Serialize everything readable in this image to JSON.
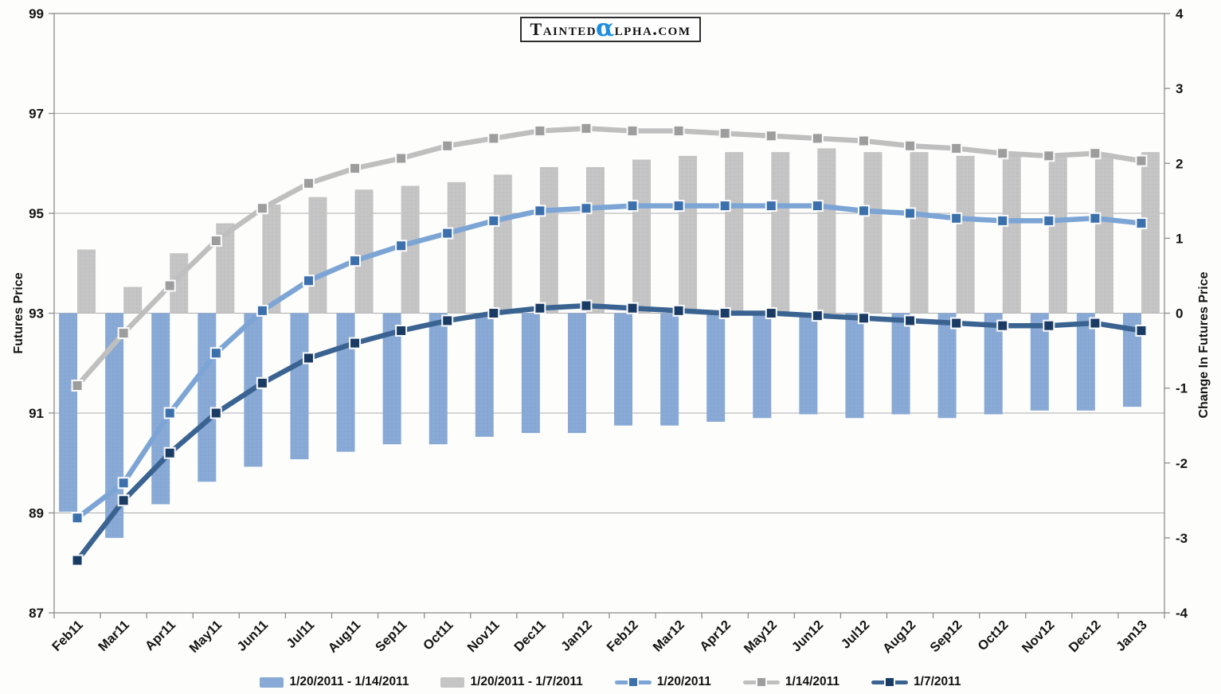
{
  "logo": {
    "prefix": "Tainted",
    "alpha": "α",
    "suffix": "lpha.com",
    "alpha_color": "#1D8FE2"
  },
  "chart_data": {
    "type": "combo-bar-line",
    "categories": [
      "Feb11",
      "Mar11",
      "Apr11",
      "May11",
      "Jun11",
      "Jul11",
      "Aug11",
      "Sep11",
      "Oct11",
      "Nov11",
      "Dec11",
      "Jan12",
      "Feb12",
      "Mar12",
      "Apr12",
      "May12",
      "Jun12",
      "Jul12",
      "Aug12",
      "Sep12",
      "Oct12",
      "Nov12",
      "Dec12",
      "Jan13"
    ],
    "series": [
      {
        "name": "1/20/2011 - 1/14/2011",
        "type": "bar",
        "axis": "right",
        "color": "#89AAD6",
        "values": [
          -2.65,
          -3.0,
          -2.55,
          -2.25,
          -2.05,
          -1.95,
          -1.85,
          -1.75,
          -1.75,
          -1.65,
          -1.6,
          -1.6,
          -1.5,
          -1.5,
          -1.45,
          -1.4,
          -1.35,
          -1.4,
          -1.35,
          -1.4,
          -1.35,
          -1.3,
          -1.3,
          -1.25
        ]
      },
      {
        "name": "1/20/2011 - 1/7/2011",
        "type": "bar",
        "axis": "right",
        "color": "#C5C5C5",
        "values": [
          0.85,
          0.35,
          0.8,
          1.2,
          1.45,
          1.55,
          1.65,
          1.7,
          1.75,
          1.85,
          1.95,
          1.95,
          2.05,
          2.1,
          2.15,
          2.15,
          2.2,
          2.15,
          2.15,
          2.1,
          2.1,
          2.1,
          2.1,
          2.15
        ]
      },
      {
        "name": "1/20/2011",
        "type": "line",
        "axis": "left",
        "color": "#7CA5D5",
        "marker_color": "#3B70AD",
        "values": [
          88.9,
          89.6,
          91.0,
          92.2,
          93.05,
          93.65,
          94.05,
          94.35,
          94.6,
          94.85,
          95.05,
          95.1,
          95.15,
          95.15,
          95.15,
          95.15,
          95.15,
          95.05,
          95.0,
          94.9,
          94.85,
          94.85,
          94.9,
          94.8
        ]
      },
      {
        "name": "1/14/2011",
        "type": "line",
        "axis": "left",
        "color": "#BFBFBF",
        "marker_color": "#9D9D9D",
        "values": [
          91.55,
          92.6,
          93.55,
          94.45,
          95.1,
          95.6,
          95.9,
          96.1,
          96.35,
          96.5,
          96.65,
          96.7,
          96.65,
          96.65,
          96.6,
          96.55,
          96.5,
          96.45,
          96.35,
          96.3,
          96.2,
          96.15,
          96.2,
          96.05
        ]
      },
      {
        "name": "1/7/2011",
        "type": "line",
        "axis": "left",
        "color": "#3A6392",
        "marker_color": "#1A3C64",
        "values": [
          88.05,
          89.25,
          90.2,
          91.0,
          91.6,
          92.1,
          92.4,
          92.65,
          92.85,
          93.0,
          93.1,
          93.15,
          93.1,
          93.05,
          93.0,
          93.0,
          92.95,
          92.9,
          92.85,
          92.8,
          92.75,
          92.75,
          92.8,
          92.65
        ]
      }
    ],
    "left_axis": {
      "title": "Futures Price",
      "min": 87,
      "max": 99,
      "tick_step": 2
    },
    "right_axis": {
      "title": "Change In Futures Price",
      "min": -4,
      "max": 4,
      "tick_step": 1
    },
    "grid": "horizontal",
    "legend_position": "bottom"
  }
}
